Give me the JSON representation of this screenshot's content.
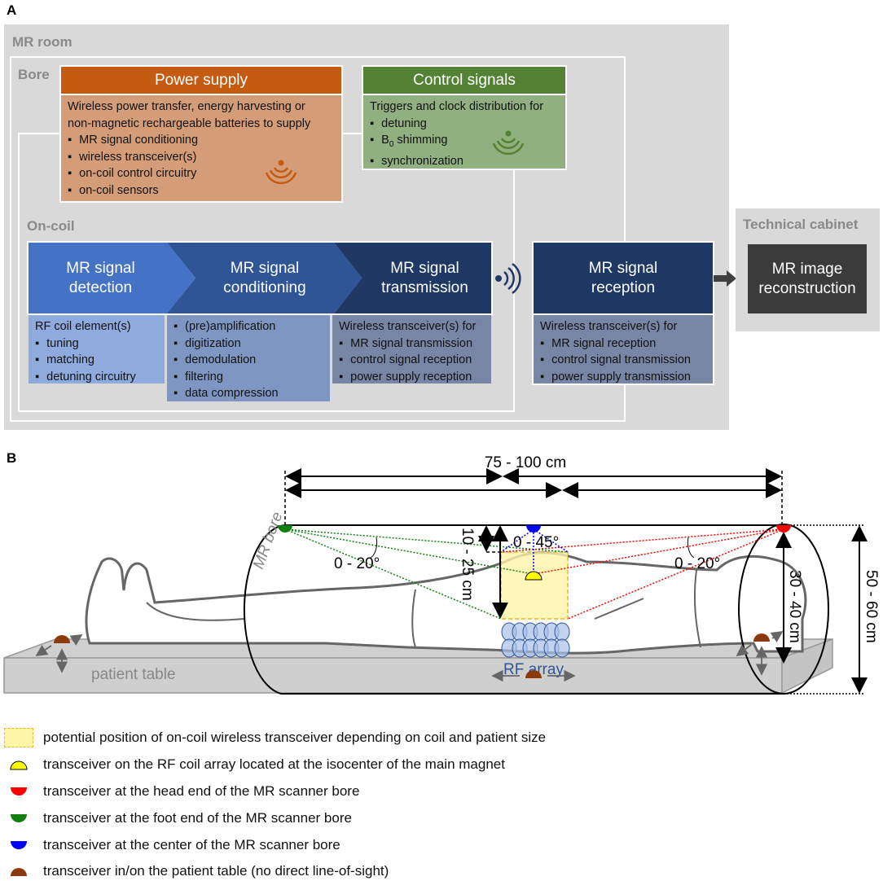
{
  "panel_a": {
    "label": "A",
    "mr_room": "MR room",
    "bore": "Bore",
    "on_coil": "On-coil",
    "power_supply": {
      "title": "Power supply",
      "intro": [
        "Wireless power transfer, energy harvesting or",
        "non-magnetic rechargeable batteries to supply"
      ],
      "items": [
        "MR signal conditioning",
        "wireless transceiver(s)",
        "on-coil control circuitry",
        "on-coil sensors"
      ],
      "color": "#c55a11",
      "icon": "wireless-signal-icon"
    },
    "control_signals": {
      "title": "Control signals",
      "intro": "Triggers and clock distribution for",
      "items": [
        "detuning",
        "B",
        "0",
        " shimming",
        "synchronization"
      ],
      "color": "#548235",
      "icon": "wireless-signal-icon"
    },
    "chain": [
      {
        "title": [
          "MR signal",
          "detection"
        ],
        "intro": "RF coil element(s)",
        "items": [
          "tuning",
          "matching",
          "detuning circuitry"
        ]
      },
      {
        "title": [
          "MR signal",
          "conditioning"
        ],
        "intro": "",
        "items": [
          "(pre)amplification",
          "digitization",
          "demodulation",
          "filtering",
          "data compression"
        ]
      },
      {
        "title": [
          "MR signal",
          "transmission"
        ],
        "intro": "Wireless transceiver(s) for",
        "items": [
          "MR signal transmission",
          "control signal reception",
          "power supply reception"
        ]
      },
      {
        "title": [
          "MR signal",
          "reception"
        ],
        "intro": "Wireless transceiver(s) for",
        "items": [
          "MR signal reception",
          "control signal transmission",
          "power supply transmission"
        ]
      }
    ],
    "technical_cabinet": "Technical cabinet",
    "reconstruction": [
      "MR image",
      "reconstruction"
    ]
  },
  "panel_b": {
    "label": "B",
    "bore_length": "75 - 100 cm",
    "angle_left": "0 - 20°",
    "angle_right": "0 - 20°",
    "angle_center": "0 - 45°",
    "coil_distance": "10 - 25 cm",
    "table_distance": "30 - 40 cm",
    "bore_diameter": "50 - 60 cm",
    "bore_label": "MR bore",
    "rf_array": "RF array",
    "table_label": "patient table",
    "colors": {
      "head": "#ff0000",
      "foot": "#108010",
      "center": "#0000ff",
      "coil": "#ffff00",
      "table": "#8b3a0e"
    },
    "legend": [
      "potential position of on-coil wireless transceiver depending on coil and patient size",
      "transceiver on the RF coil array located at the isocenter of the main magnet",
      "transceiver at the head end of the MR scanner bore",
      "transceiver at the foot end of the MR scanner bore",
      "transceiver at the center of the MR scanner bore",
      "transceiver in/on the patient table (no direct line-of-sight)"
    ]
  }
}
